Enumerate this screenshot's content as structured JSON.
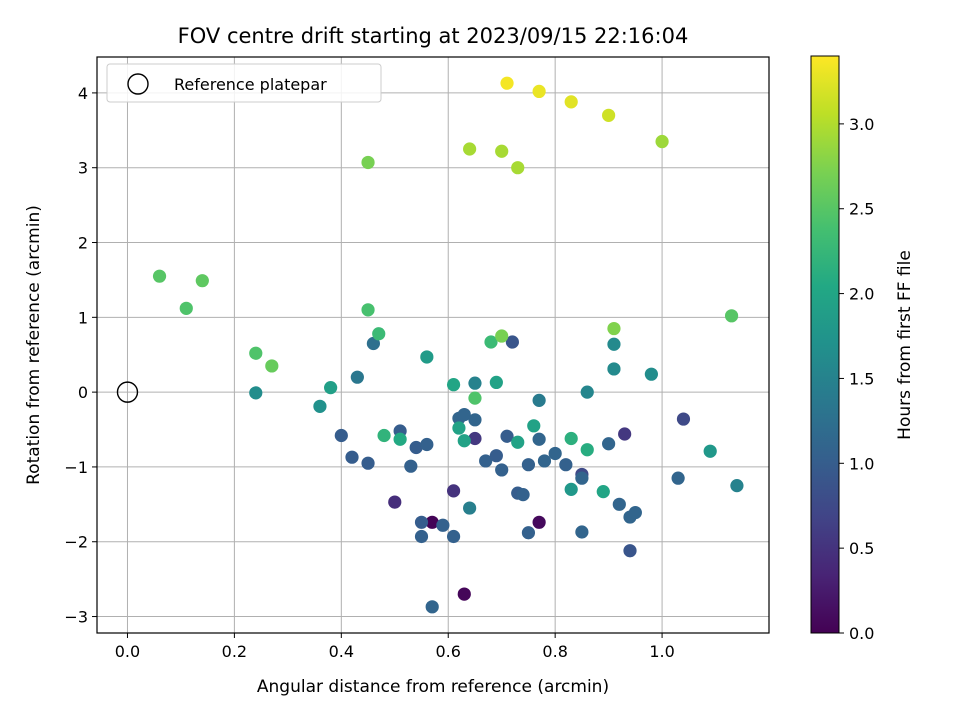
{
  "chart_data": {
    "type": "scatter",
    "title": "FOV centre drift starting at 2023/09/15 22:16:04",
    "xlabel": "Angular distance from reference (arcmin)",
    "ylabel": "Rotation from reference (arcmin)",
    "xlim": [
      -0.057,
      1.2
    ],
    "ylim": [
      -3.22,
      4.48
    ],
    "x_ticks": [
      "0.0",
      "0.2",
      "0.4",
      "0.6",
      "0.8",
      "1.0"
    ],
    "y_ticks": [
      "−3",
      "−2",
      "−1",
      "0",
      "1",
      "2",
      "3",
      "4"
    ],
    "grid": true,
    "legend": {
      "position": "top-left",
      "entries": [
        "Reference platepar"
      ]
    },
    "reference": {
      "x": 0.0,
      "y": 0.0,
      "marker": "hollow-circle",
      "color": "#000000"
    },
    "colorbar": {
      "label": "Hours from first FF file",
      "range": [
        0.0,
        3.4
      ],
      "ticks": [
        "0.0",
        "0.5",
        "1.0",
        "1.5",
        "2.0",
        "2.5",
        "3.0"
      ],
      "colormap": "viridis"
    },
    "points": [
      {
        "x": 0.57,
        "y": -1.74,
        "h": 0.02
      },
      {
        "x": 0.63,
        "y": -2.7,
        "h": 0.05
      },
      {
        "x": 0.77,
        "y": -1.74,
        "h": 0.08
      },
      {
        "x": 0.5,
        "y": -1.47,
        "h": 0.45
      },
      {
        "x": 0.61,
        "y": -1.32,
        "h": 0.5
      },
      {
        "x": 0.93,
        "y": -0.56,
        "h": 0.55
      },
      {
        "x": 0.65,
        "y": -0.62,
        "h": 0.55
      },
      {
        "x": 1.04,
        "y": -0.36,
        "h": 0.75
      },
      {
        "x": 0.85,
        "y": -1.1,
        "h": 0.75
      },
      {
        "x": 0.94,
        "y": -2.12,
        "h": 0.9
      },
      {
        "x": 0.72,
        "y": 0.67,
        "h": 0.9
      },
      {
        "x": 0.4,
        "y": -0.58,
        "h": 1.0
      },
      {
        "x": 0.42,
        "y": -0.87,
        "h": 1.0
      },
      {
        "x": 0.45,
        "y": -0.95,
        "h": 1.0
      },
      {
        "x": 0.51,
        "y": -0.52,
        "h": 1.0
      },
      {
        "x": 0.53,
        "y": -0.99,
        "h": 1.05
      },
      {
        "x": 0.54,
        "y": -0.74,
        "h": 1.0
      },
      {
        "x": 0.55,
        "y": -1.74,
        "h": 1.0
      },
      {
        "x": 0.55,
        "y": -1.93,
        "h": 1.05
      },
      {
        "x": 0.56,
        "y": -0.7,
        "h": 1.05
      },
      {
        "x": 0.57,
        "y": -2.87,
        "h": 1.1
      },
      {
        "x": 0.59,
        "y": -1.78,
        "h": 1.05
      },
      {
        "x": 0.61,
        "y": -1.93,
        "h": 1.05
      },
      {
        "x": 0.62,
        "y": -0.35,
        "h": 1.1
      },
      {
        "x": 0.63,
        "y": -0.3,
        "h": 1.1
      },
      {
        "x": 0.65,
        "y": -0.37,
        "h": 1.1
      },
      {
        "x": 0.67,
        "y": -0.92,
        "h": 1.05
      },
      {
        "x": 0.69,
        "y": -0.85,
        "h": 1.0
      },
      {
        "x": 0.7,
        "y": -1.04,
        "h": 1.05
      },
      {
        "x": 0.71,
        "y": -0.59,
        "h": 1.0
      },
      {
        "x": 0.73,
        "y": -1.35,
        "h": 1.0
      },
      {
        "x": 0.74,
        "y": -1.37,
        "h": 1.05
      },
      {
        "x": 0.75,
        "y": -0.97,
        "h": 1.05
      },
      {
        "x": 0.75,
        "y": -1.88,
        "h": 1.05
      },
      {
        "x": 0.77,
        "y": -0.63,
        "h": 1.1
      },
      {
        "x": 0.78,
        "y": -0.92,
        "h": 1.1
      },
      {
        "x": 0.8,
        "y": -0.82,
        "h": 1.1
      },
      {
        "x": 0.82,
        "y": -0.97,
        "h": 1.05
      },
      {
        "x": 0.85,
        "y": -1.15,
        "h": 1.1
      },
      {
        "x": 0.85,
        "y": -1.87,
        "h": 1.1
      },
      {
        "x": 0.9,
        "y": -0.69,
        "h": 1.1
      },
      {
        "x": 0.92,
        "y": -1.5,
        "h": 1.1
      },
      {
        "x": 0.94,
        "y": -1.67,
        "h": 1.1
      },
      {
        "x": 0.95,
        "y": -1.61,
        "h": 1.1
      },
      {
        "x": 1.03,
        "y": -1.15,
        "h": 1.1
      },
      {
        "x": 0.46,
        "y": 0.65,
        "h": 1.25
      },
      {
        "x": 0.43,
        "y": 0.2,
        "h": 1.35
      },
      {
        "x": 0.77,
        "y": -0.11,
        "h": 1.4
      },
      {
        "x": 0.64,
        "y": -1.55,
        "h": 1.45
      },
      {
        "x": 0.65,
        "y": 0.12,
        "h": 1.5
      },
      {
        "x": 1.14,
        "y": -1.25,
        "h": 1.5
      },
      {
        "x": 0.86,
        "y": 0.0,
        "h": 1.55
      },
      {
        "x": 0.91,
        "y": 0.31,
        "h": 1.6
      },
      {
        "x": 0.91,
        "y": 0.64,
        "h": 1.6
      },
      {
        "x": 0.98,
        "y": 0.24,
        "h": 1.65
      },
      {
        "x": 0.24,
        "y": -0.01,
        "h": 1.65
      },
      {
        "x": 0.36,
        "y": -0.19,
        "h": 1.7
      },
      {
        "x": 0.83,
        "y": -1.3,
        "h": 1.8
      },
      {
        "x": 0.56,
        "y": 0.47,
        "h": 1.85
      },
      {
        "x": 1.09,
        "y": -0.79,
        "h": 1.8
      },
      {
        "x": 0.38,
        "y": 0.06,
        "h": 1.9
      },
      {
        "x": 0.62,
        "y": -0.48,
        "h": 1.95
      },
      {
        "x": 0.63,
        "y": -0.65,
        "h": 1.95
      },
      {
        "x": 0.69,
        "y": 0.13,
        "h": 1.95
      },
      {
        "x": 0.73,
        "y": -0.67,
        "h": 1.95
      },
      {
        "x": 0.76,
        "y": -0.45,
        "h": 1.95
      },
      {
        "x": 0.61,
        "y": 0.1,
        "h": 2.0
      },
      {
        "x": 0.89,
        "y": -1.33,
        "h": 2.0
      },
      {
        "x": 0.51,
        "y": -0.63,
        "h": 2.05
      },
      {
        "x": 0.86,
        "y": -0.77,
        "h": 2.1
      },
      {
        "x": 0.83,
        "y": -0.62,
        "h": 2.15
      },
      {
        "x": 0.48,
        "y": -0.58,
        "h": 2.2
      },
      {
        "x": 0.47,
        "y": 0.78,
        "h": 2.3
      },
      {
        "x": 0.68,
        "y": 0.67,
        "h": 2.3
      },
      {
        "x": 0.45,
        "y": 1.1,
        "h": 2.4
      },
      {
        "x": 0.65,
        "y": -0.08,
        "h": 2.45
      },
      {
        "x": 0.11,
        "y": 1.12,
        "h": 2.45
      },
      {
        "x": 0.24,
        "y": 0.52,
        "h": 2.45
      },
      {
        "x": 0.06,
        "y": 1.55,
        "h": 2.5
      },
      {
        "x": 0.14,
        "y": 1.49,
        "h": 2.55
      },
      {
        "x": 1.13,
        "y": 1.02,
        "h": 2.5
      },
      {
        "x": 0.27,
        "y": 0.35,
        "h": 2.6
      },
      {
        "x": 0.7,
        "y": 0.75,
        "h": 2.7
      },
      {
        "x": 0.91,
        "y": 0.85,
        "h": 2.75
      },
      {
        "x": 0.45,
        "y": 3.07,
        "h": 2.7
      },
      {
        "x": 1.0,
        "y": 3.35,
        "h": 2.9
      },
      {
        "x": 0.64,
        "y": 3.25,
        "h": 2.95
      },
      {
        "x": 0.7,
        "y": 3.22,
        "h": 2.95
      },
      {
        "x": 0.73,
        "y": 3.0,
        "h": 2.95
      },
      {
        "x": 0.9,
        "y": 3.7,
        "h": 3.15
      },
      {
        "x": 0.83,
        "y": 3.88,
        "h": 3.25
      },
      {
        "x": 0.77,
        "y": 4.02,
        "h": 3.3
      },
      {
        "x": 0.71,
        "y": 4.13,
        "h": 3.35
      }
    ]
  }
}
